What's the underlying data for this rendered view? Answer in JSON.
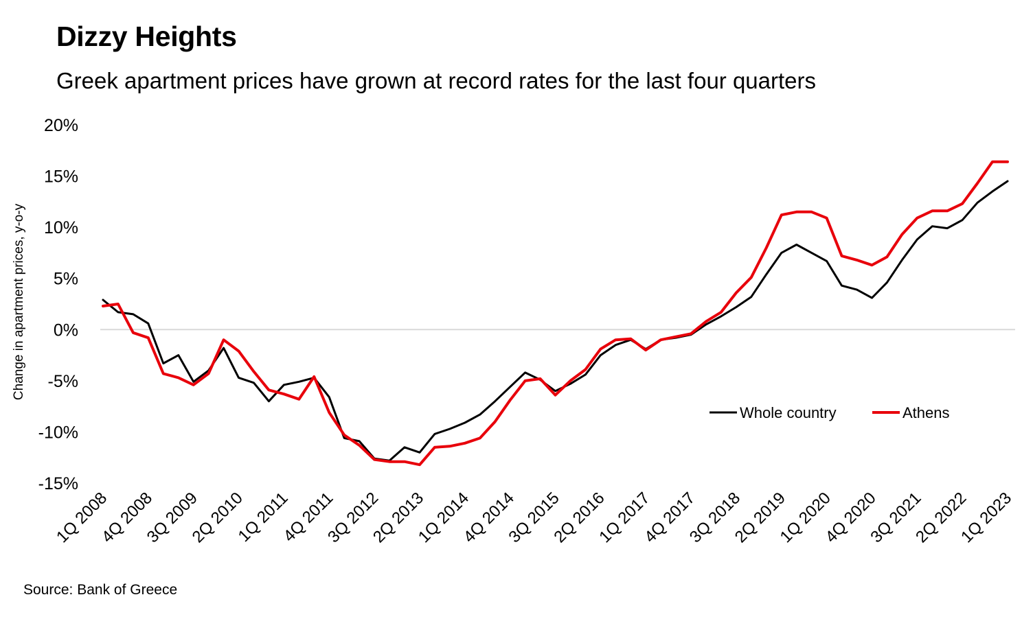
{
  "title": "Dizzy Heights",
  "subtitle": "Greek apartment prices have grown at record rates for the last four quarters",
  "source": "Source: Bank of Greece",
  "chart_data": {
    "type": "line",
    "ylabel": "Change in apartment prices, y-o-y",
    "xlabel": "",
    "ylim": [
      -15,
      20
    ],
    "y_ticks": [
      "-15%",
      "-10%",
      "-5%",
      "0%",
      "5%",
      "10%",
      "15%",
      "20%"
    ],
    "y_tick_values": [
      -15,
      -10,
      -5,
      0,
      5,
      10,
      15,
      20
    ],
    "zero_line": true,
    "grid": false,
    "legend_position": "right-middle",
    "x": [
      "1Q 2008",
      "2Q 2008",
      "3Q 2008",
      "4Q 2008",
      "1Q 2009",
      "2Q 2009",
      "3Q 2009",
      "4Q 2009",
      "1Q 2010",
      "2Q 2010",
      "3Q 2010",
      "4Q 2010",
      "1Q 2011",
      "2Q 2011",
      "3Q 2011",
      "4Q 2011",
      "1Q 2012",
      "2Q 2012",
      "3Q 2012",
      "4Q 2012",
      "1Q 2013",
      "2Q 2013",
      "3Q 2013",
      "4Q 2013",
      "1Q 2014",
      "2Q 2014",
      "3Q 2014",
      "4Q 2014",
      "1Q 2015",
      "2Q 2015",
      "3Q 2015",
      "4Q 2015",
      "1Q 2016",
      "2Q 2016",
      "3Q 2016",
      "4Q 2016",
      "1Q 2017",
      "2Q 2017",
      "3Q 2017",
      "4Q 2017",
      "1Q 2018",
      "2Q 2018",
      "3Q 2018",
      "4Q 2018",
      "1Q 2019",
      "2Q 2019",
      "3Q 2019",
      "4Q 2019",
      "1Q 2020",
      "2Q 2020",
      "3Q 2020",
      "4Q 2020",
      "1Q 2021",
      "2Q 2021",
      "3Q 2021",
      "4Q 2021",
      "1Q 2022",
      "2Q 2022",
      "3Q 2022",
      "4Q 2022",
      "1Q 2023"
    ],
    "x_tick_labels": [
      "1Q 2008",
      "4Q 2008",
      "3Q 2009",
      "2Q 2010",
      "1Q 2011",
      "4Q 2011",
      "3Q 2012",
      "2Q 2013",
      "1Q 2014",
      "4Q 2014",
      "3Q 2015",
      "2Q 2016",
      "1Q 2017",
      "4Q 2017",
      "3Q 2018",
      "2Q 2019",
      "1Q 2020",
      "4Q 2020",
      "3Q 2021",
      "2Q 2022",
      "1Q 2023"
    ],
    "series": [
      {
        "name": "Whole country",
        "color": "#000000",
        "values": [
          2.9,
          1.7,
          1.5,
          0.6,
          -3.3,
          -2.5,
          -5.1,
          -4.0,
          -1.8,
          -4.7,
          -5.2,
          -7.0,
          -5.4,
          -5.1,
          -4.7,
          -6.6,
          -10.6,
          -10.9,
          -12.6,
          -12.8,
          -11.5,
          -12.0,
          -10.2,
          -9.7,
          -9.1,
          -8.3,
          -7.0,
          -5.6,
          -4.2,
          -4.9,
          -6.0,
          -5.3,
          -4.4,
          -2.5,
          -1.5,
          -1.0,
          -1.9,
          -1.0,
          -0.8,
          -0.5,
          0.5,
          1.3,
          2.2,
          3.2,
          5.4,
          7.5,
          8.3,
          7.5,
          6.7,
          4.3,
          3.9,
          3.1,
          4.6,
          6.8,
          8.8,
          10.1,
          9.9,
          10.7,
          12.4,
          13.5,
          14.5
        ]
      },
      {
        "name": "Athens",
        "color": "#e8000b",
        "values": [
          2.3,
          2.5,
          -0.3,
          -0.8,
          -4.3,
          -4.7,
          -5.4,
          -4.3,
          -1.0,
          -2.1,
          -4.1,
          -5.9,
          -6.3,
          -6.8,
          -4.6,
          -8.1,
          -10.3,
          -11.3,
          -12.7,
          -12.9,
          -12.9,
          -13.2,
          -11.5,
          -11.4,
          -11.1,
          -10.6,
          -9.0,
          -6.9,
          -5.0,
          -4.8,
          -6.4,
          -5.0,
          -3.9,
          -1.9,
          -1.0,
          -0.9,
          -2.0,
          -1.0,
          -0.7,
          -0.4,
          0.8,
          1.7,
          3.6,
          5.1,
          8.0,
          11.2,
          11.5,
          11.5,
          10.9,
          7.2,
          6.8,
          6.3,
          7.1,
          9.3,
          10.9,
          11.6,
          11.6,
          12.3,
          14.3,
          16.4,
          16.4
        ]
      }
    ]
  }
}
